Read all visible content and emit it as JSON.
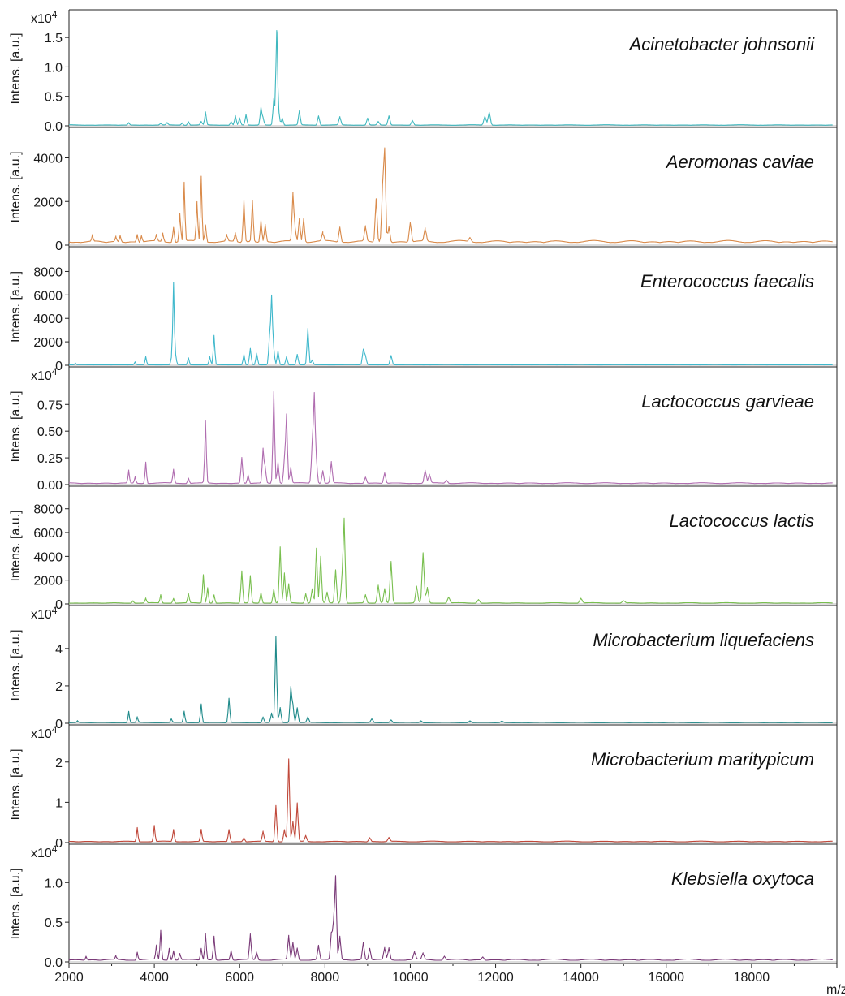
{
  "chart_data": {
    "type": "line",
    "xlabel": "m/z",
    "ylabel": "Intens. [a.u.]",
    "xlim": [
      2000,
      20000
    ],
    "x_ticks": [
      2000,
      4000,
      6000,
      8000,
      10000,
      12000,
      14000,
      16000,
      18000
    ],
    "panels": [
      {
        "name": "Acinetobacter johnsonii",
        "color": "#3fb8bf",
        "multiplier": "x10",
        "multiplier_exp": "4",
        "ylim": [
          0,
          1.75
        ],
        "y_ticks": [
          "0.0",
          "0.5",
          "1.0",
          "1.5"
        ],
        "y_tick_values": [
          0,
          0.5,
          1.0,
          1.5
        ],
        "baseline": 0.01,
        "peaks": [
          [
            3400,
            0.04
          ],
          [
            4150,
            0.03
          ],
          [
            4300,
            0.04
          ],
          [
            4650,
            0.04
          ],
          [
            4800,
            0.06
          ],
          [
            5100,
            0.06
          ],
          [
            5200,
            0.22
          ],
          [
            5800,
            0.06
          ],
          [
            5900,
            0.16
          ],
          [
            6000,
            0.12
          ],
          [
            6150,
            0.18
          ],
          [
            6500,
            0.3
          ],
          [
            6550,
            0.12
          ],
          [
            6800,
            0.45
          ],
          [
            6870,
            1.6
          ],
          [
            6920,
            0.18
          ],
          [
            7000,
            0.12
          ],
          [
            7400,
            0.24
          ],
          [
            7850,
            0.16
          ],
          [
            8350,
            0.14
          ],
          [
            9000,
            0.12
          ],
          [
            9250,
            0.06
          ],
          [
            9500,
            0.16
          ],
          [
            10050,
            0.08
          ],
          [
            11750,
            0.15
          ],
          [
            11850,
            0.22
          ]
        ]
      },
      {
        "name": "Aeromonas caviae",
        "color": "#d98a4a",
        "multiplier": "",
        "multiplier_exp": "",
        "ylim": [
          0,
          4800
        ],
        "y_ticks": [
          "0",
          "2000",
          "4000"
        ],
        "y_tick_values": [
          0,
          2000,
          4000
        ],
        "baseline": 120,
        "peaks": [
          [
            2550,
            300
          ],
          [
            3100,
            250
          ],
          [
            3200,
            300
          ],
          [
            3600,
            350
          ],
          [
            3700,
            300
          ],
          [
            4050,
            300
          ],
          [
            4200,
            400
          ],
          [
            4450,
            700
          ],
          [
            4600,
            1300
          ],
          [
            4700,
            2700
          ],
          [
            5000,
            1800
          ],
          [
            5100,
            3000
          ],
          [
            5200,
            800
          ],
          [
            5700,
            300
          ],
          [
            5900,
            400
          ],
          [
            6100,
            1900
          ],
          [
            6300,
            1900
          ],
          [
            6500,
            1000
          ],
          [
            6600,
            800
          ],
          [
            7250,
            2200
          ],
          [
            7300,
            600
          ],
          [
            7400,
            1100
          ],
          [
            7500,
            1100
          ],
          [
            7950,
            400
          ],
          [
            8350,
            700
          ],
          [
            8950,
            700
          ],
          [
            9200,
            2000
          ],
          [
            9350,
            2300
          ],
          [
            9400,
            4100
          ],
          [
            9500,
            700
          ],
          [
            10000,
            900
          ],
          [
            10350,
            600
          ],
          [
            11400,
            200
          ]
        ]
      },
      {
        "name": "Enterococcus faecalis",
        "color": "#3fb8cc",
        "multiplier": "",
        "multiplier_exp": "",
        "ylim": [
          0,
          9000
        ],
        "y_ticks": [
          "0",
          "2000",
          "4000",
          "6000",
          "8000"
        ],
        "y_tick_values": [
          0,
          2000,
          4000,
          6000,
          8000
        ],
        "baseline": 30,
        "peaks": [
          [
            2150,
            150
          ],
          [
            3550,
            250
          ],
          [
            3800,
            700
          ],
          [
            4400,
            500
          ],
          [
            4450,
            7000
          ],
          [
            4500,
            800
          ],
          [
            4800,
            600
          ],
          [
            5300,
            700
          ],
          [
            5400,
            2500
          ],
          [
            6100,
            900
          ],
          [
            6250,
            1400
          ],
          [
            6400,
            1000
          ],
          [
            6700,
            2300
          ],
          [
            6750,
            5800
          ],
          [
            6800,
            1200
          ],
          [
            6900,
            1200
          ],
          [
            7100,
            700
          ],
          [
            7350,
            900
          ],
          [
            7600,
            3100
          ],
          [
            7700,
            400
          ],
          [
            8900,
            1300
          ],
          [
            8950,
            700
          ],
          [
            9550,
            800
          ]
        ]
      },
      {
        "name": "Lactococcus garvieae",
        "color": "#b06db0",
        "multiplier": "x10",
        "multiplier_exp": "4",
        "ylim": [
          0,
          0.98
        ],
        "y_ticks": [
          "0.00",
          "0.25",
          "0.50",
          "0.75"
        ],
        "y_tick_values": [
          0,
          0.25,
          0.5,
          0.75
        ],
        "baseline": 0.01,
        "peaks": [
          [
            3400,
            0.12
          ],
          [
            3550,
            0.06
          ],
          [
            3800,
            0.2
          ],
          [
            4450,
            0.13
          ],
          [
            4800,
            0.05
          ],
          [
            5200,
            0.58
          ],
          [
            6050,
            0.24
          ],
          [
            6200,
            0.08
          ],
          [
            6550,
            0.32
          ],
          [
            6600,
            0.14
          ],
          [
            6800,
            0.86
          ],
          [
            6900,
            0.2
          ],
          [
            7050,
            0.22
          ],
          [
            7100,
            0.64
          ],
          [
            7200,
            0.15
          ],
          [
            7700,
            0.35
          ],
          [
            7750,
            0.82
          ],
          [
            7800,
            0.2
          ],
          [
            7950,
            0.12
          ],
          [
            8150,
            0.2
          ],
          [
            8950,
            0.06
          ],
          [
            9400,
            0.1
          ],
          [
            10350,
            0.12
          ],
          [
            10450,
            0.08
          ],
          [
            10850,
            0.03
          ]
        ]
      },
      {
        "name": "Lactococcus lactis",
        "color": "#79bf4f",
        "multiplier": "",
        "multiplier_exp": "",
        "ylim": [
          0,
          8800
        ],
        "y_ticks": [
          "0",
          "2000",
          "4000",
          "6000",
          "8000"
        ],
        "y_tick_values": [
          0,
          2000,
          4000,
          6000,
          8000
        ],
        "baseline": 60,
        "peaks": [
          [
            3500,
            200
          ],
          [
            3800,
            400
          ],
          [
            4150,
            700
          ],
          [
            4450,
            400
          ],
          [
            4800,
            800
          ],
          [
            5150,
            2400
          ],
          [
            5250,
            1300
          ],
          [
            5400,
            700
          ],
          [
            6050,
            2700
          ],
          [
            6250,
            2300
          ],
          [
            6500,
            900
          ],
          [
            6800,
            1200
          ],
          [
            6950,
            4700
          ],
          [
            7050,
            2500
          ],
          [
            7150,
            1600
          ],
          [
            7550,
            800
          ],
          [
            7700,
            1200
          ],
          [
            7800,
            4600
          ],
          [
            7900,
            3900
          ],
          [
            8050,
            900
          ],
          [
            8250,
            2800
          ],
          [
            8400,
            2000
          ],
          [
            8450,
            7000
          ],
          [
            8950,
            700
          ],
          [
            9250,
            1500
          ],
          [
            9400,
            1200
          ],
          [
            9550,
            3500
          ],
          [
            10150,
            1400
          ],
          [
            10300,
            4200
          ],
          [
            10400,
            1300
          ],
          [
            10900,
            500
          ],
          [
            11600,
            300
          ],
          [
            14000,
            400
          ],
          [
            15000,
            200
          ]
        ]
      },
      {
        "name": "Microbacterium liquefaciens",
        "color": "#1f8a8a",
        "multiplier": "x10",
        "multiplier_exp": "4",
        "ylim": [
          0,
          5.6
        ],
        "y_ticks": [
          "0",
          "2",
          "4"
        ],
        "y_tick_values": [
          0,
          2,
          4
        ],
        "baseline": 0.03,
        "peaks": [
          [
            2200,
            0.1
          ],
          [
            3400,
            0.6
          ],
          [
            3600,
            0.3
          ],
          [
            4400,
            0.2
          ],
          [
            4700,
            0.6
          ],
          [
            5100,
            1.0
          ],
          [
            5750,
            1.3
          ],
          [
            6550,
            0.3
          ],
          [
            6750,
            0.5
          ],
          [
            6850,
            4.6
          ],
          [
            6950,
            0.8
          ],
          [
            7200,
            1.9
          ],
          [
            7250,
            0.9
          ],
          [
            7350,
            0.8
          ],
          [
            7600,
            0.3
          ],
          [
            9100,
            0.2
          ],
          [
            9550,
            0.15
          ],
          [
            10250,
            0.1
          ],
          [
            11400,
            0.1
          ],
          [
            12150,
            0.08
          ]
        ]
      },
      {
        "name": "Microbacterium maritypicum",
        "color": "#c0483a",
        "multiplier": "x10",
        "multiplier_exp": "4",
        "ylim": [
          0,
          2.6
        ],
        "y_ticks": [
          "0",
          "1",
          "2"
        ],
        "y_tick_values": [
          0,
          1,
          2
        ],
        "baseline": 0.02,
        "peaks": [
          [
            3600,
            0.35
          ],
          [
            4000,
            0.4
          ],
          [
            4450,
            0.3
          ],
          [
            5100,
            0.3
          ],
          [
            5750,
            0.3
          ],
          [
            6100,
            0.1
          ],
          [
            6550,
            0.25
          ],
          [
            6850,
            0.9
          ],
          [
            7050,
            0.3
          ],
          [
            7150,
            2.05
          ],
          [
            7250,
            0.5
          ],
          [
            7350,
            0.95
          ],
          [
            7550,
            0.15
          ],
          [
            9050,
            0.1
          ],
          [
            9500,
            0.1
          ]
        ]
      },
      {
        "name": "Klebsiella oxytoca",
        "color": "#7a3a78",
        "multiplier": "x10",
        "multiplier_exp": "4",
        "ylim": [
          0,
          1.32
        ],
        "y_ticks": [
          "0.0",
          "0.5",
          "1.0"
        ],
        "y_tick_values": [
          0,
          0.5,
          1.0
        ],
        "baseline": 0.02,
        "peaks": [
          [
            2400,
            0.05
          ],
          [
            3100,
            0.05
          ],
          [
            3600,
            0.1
          ],
          [
            4050,
            0.18
          ],
          [
            4150,
            0.37
          ],
          [
            4350,
            0.15
          ],
          [
            4450,
            0.12
          ],
          [
            4600,
            0.08
          ],
          [
            5100,
            0.15
          ],
          [
            5200,
            0.33
          ],
          [
            5400,
            0.3
          ],
          [
            5800,
            0.12
          ],
          [
            6250,
            0.32
          ],
          [
            6400,
            0.1
          ],
          [
            7150,
            0.3
          ],
          [
            7250,
            0.22
          ],
          [
            7350,
            0.15
          ],
          [
            7850,
            0.18
          ],
          [
            8150,
            0.32
          ],
          [
            8200,
            0.4
          ],
          [
            8250,
            1.04
          ],
          [
            8350,
            0.3
          ],
          [
            8900,
            0.22
          ],
          [
            9050,
            0.15
          ],
          [
            9400,
            0.15
          ],
          [
            9500,
            0.15
          ],
          [
            10100,
            0.1
          ],
          [
            10300,
            0.08
          ],
          [
            10800,
            0.05
          ],
          [
            11700,
            0.04
          ]
        ]
      }
    ]
  }
}
